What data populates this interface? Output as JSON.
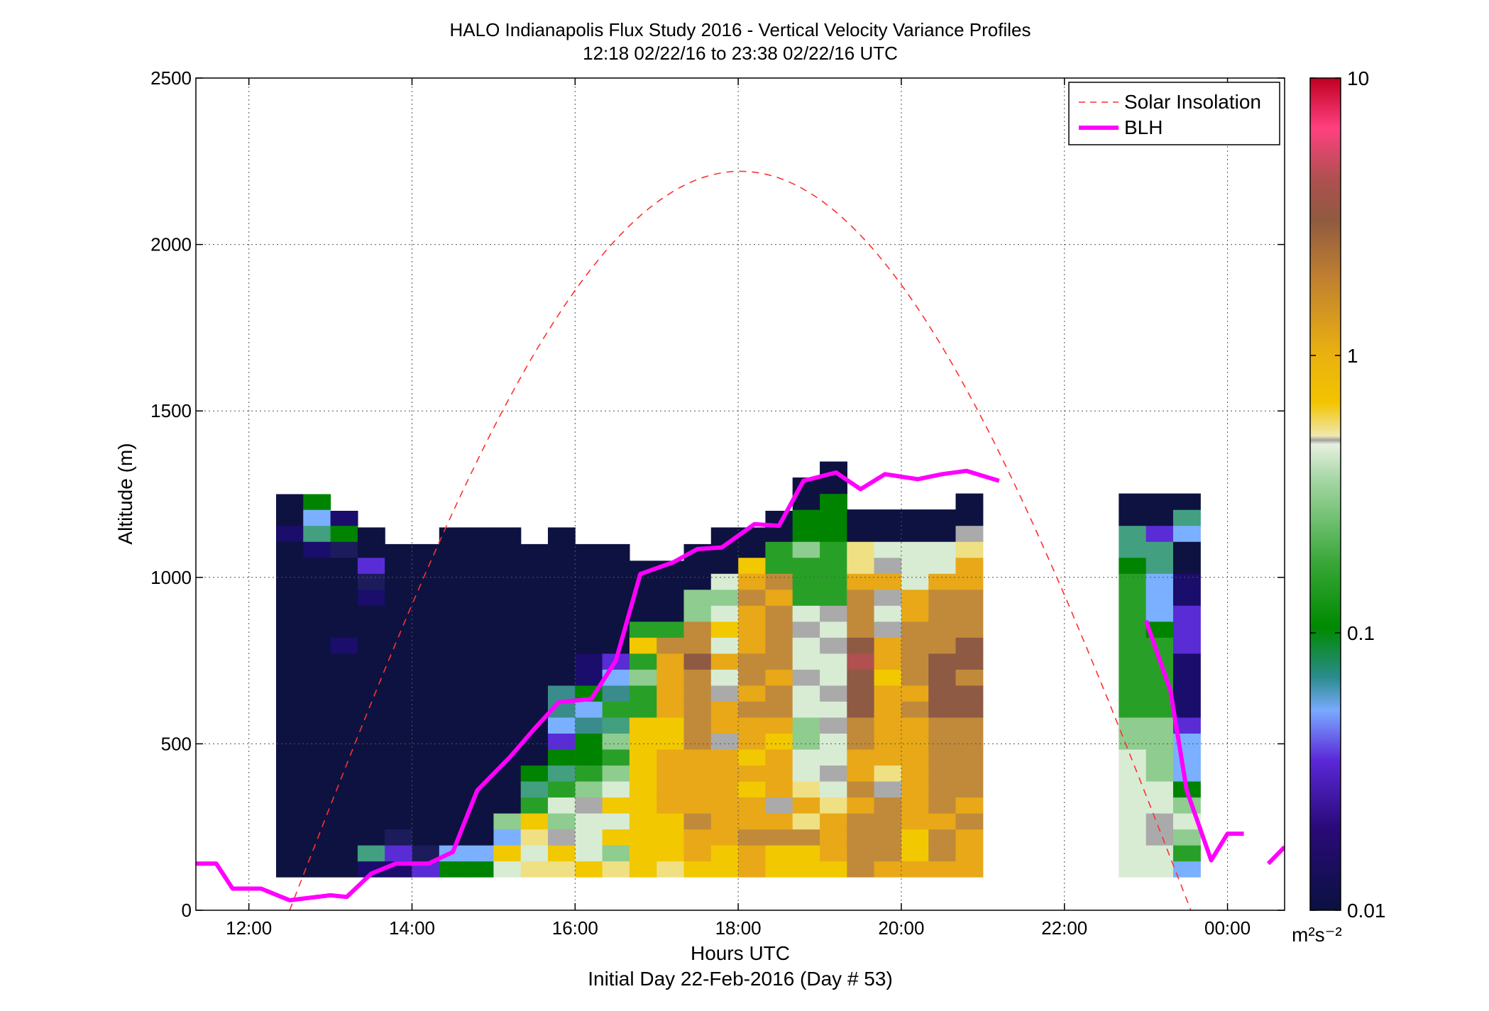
{
  "chart_data": {
    "type": "heatmap",
    "title": "HALO Indianapolis Flux Study 2016 - Vertical Velocity Variance Profiles",
    "subtitle": "12:18 02/22/16 to 23:38 02/22/16  UTC",
    "xlabel": "Hours UTC",
    "xlabel2": "Initial Day 22-Feb-2016 (Day # 53)",
    "ylabel": "Altitude (m)",
    "xlim": [
      11.35,
      24.7
    ],
    "ylim": [
      0,
      2500
    ],
    "x_ticks": [
      12,
      14,
      16,
      18,
      20,
      22,
      24
    ],
    "x_tick_labels": [
      "12:00",
      "14:00",
      "16:00",
      "18:00",
      "20:00",
      "22:00",
      "00:00"
    ],
    "y_ticks": [
      0,
      500,
      1000,
      1500,
      2000,
      2500
    ],
    "y_tick_labels": [
      "0",
      "500",
      "1000",
      "1500",
      "2000",
      "2500"
    ],
    "grid": true,
    "legend_position": "top-right",
    "legend": [
      {
        "label": "Solar Insolation",
        "color": "#ff3030",
        "style": "dashed"
      },
      {
        "label": "BLH",
        "color": "#ff00ff",
        "style": "solid"
      }
    ],
    "colorbar": {
      "scale": "log",
      "range": [
        0.01,
        10
      ],
      "tick_values": [
        0.01,
        0.1,
        1,
        10
      ],
      "tick_labels": [
        "0.01",
        "0.1",
        "1",
        "10"
      ],
      "unit_label": "m²s⁻²",
      "colors": [
        "#0a1140",
        "#2a0a7a",
        "#5a28d8",
        "#7aaaff",
        "#2a8c8c",
        "#008a00",
        "#3aa83a",
        "#a8d8a8",
        "#e8f0e0",
        "#c0c0c0",
        "#f0e070",
        "#f2c400",
        "#eab010",
        "#c08030",
        "#905a40",
        "#b05050",
        "#ff4080",
        "#c00020"
      ]
    },
    "heatmap": {
      "x_start": 12.333,
      "dx": 0.3333,
      "y_start": 100,
      "dy": 48,
      "palette": [
        "#0d1240",
        "#1a0d6b",
        "#5a2cd6",
        "#7ab0ff",
        "#3a8c8c",
        "#008400",
        "#28a028",
        "#8fcc8f",
        "#d8ecd4",
        "#aaaaaa",
        "#f0e084",
        "#f2c800",
        "#e8a818",
        "#c08a3a",
        "#8e5a44",
        "#b05050",
        "#1c1c5c",
        "#42a080"
      ],
      "profiles": [
        {
          "x": 12.5,
          "top": 1250,
          "cells": [
            0,
            0,
            0,
            0,
            0,
            0,
            0,
            0,
            0,
            0,
            0,
            0,
            0,
            0,
            0,
            0,
            0,
            0,
            0,
            0,
            0,
            1,
            0,
            0
          ]
        },
        {
          "x": 12.833,
          "top": 1250,
          "cells": [
            0,
            0,
            0,
            0,
            0,
            0,
            0,
            0,
            0,
            0,
            0,
            0,
            0,
            0,
            0,
            0,
            0,
            0,
            0,
            0,
            1,
            17,
            3,
            5
          ]
        },
        {
          "x": 13.167,
          "top": 1200,
          "cells": [
            0,
            0,
            0,
            0,
            0,
            0,
            0,
            0,
            0,
            0,
            0,
            0,
            0,
            0,
            1,
            0,
            0,
            0,
            0,
            0,
            16,
            5,
            1
          ]
        },
        {
          "x": 13.5,
          "top": 1150,
          "cells": [
            1,
            17,
            0,
            0,
            0,
            0,
            0,
            0,
            0,
            0,
            0,
            0,
            0,
            0,
            0,
            0,
            0,
            1,
            16,
            2,
            0,
            0
          ]
        },
        {
          "x": 13.833,
          "top": 1100,
          "cells": [
            1,
            2,
            16,
            0,
            0,
            0,
            0,
            0,
            0,
            0,
            0,
            0,
            0,
            0,
            0,
            0,
            0,
            0,
            0,
            0,
            0
          ]
        },
        {
          "x": 14.167,
          "top": 1100,
          "cells": [
            2,
            16,
            0,
            0,
            0,
            0,
            0,
            0,
            0,
            0,
            0,
            0,
            0,
            0,
            0,
            0,
            0,
            0,
            0,
            0,
            0
          ]
        },
        {
          "x": 14.5,
          "top": 1150,
          "cells": [
            5,
            3,
            0,
            0,
            0,
            0,
            0,
            0,
            0,
            0,
            0,
            0,
            0,
            0,
            0,
            0,
            0,
            0,
            0,
            0,
            0,
            0
          ]
        },
        {
          "x": 14.833,
          "top": 1150,
          "cells": [
            5,
            3,
            0,
            0,
            0,
            0,
            0,
            0,
            0,
            0,
            0,
            0,
            0,
            0,
            0,
            0,
            0,
            0,
            0,
            0,
            0,
            0
          ]
        },
        {
          "x": 15.167,
          "top": 1150,
          "cells": [
            8,
            11,
            3,
            7,
            0,
            0,
            0,
            0,
            0,
            0,
            0,
            0,
            0,
            0,
            0,
            0,
            0,
            0,
            0,
            0,
            0,
            0
          ]
        },
        {
          "x": 15.5,
          "top": 1100,
          "cells": [
            10,
            8,
            10,
            11,
            6,
            17,
            5,
            0,
            0,
            0,
            0,
            0,
            0,
            0,
            0,
            0,
            0,
            0,
            0,
            0,
            0
          ]
        },
        {
          "x": 15.833,
          "top": 1150,
          "cells": [
            10,
            11,
            9,
            7,
            8,
            6,
            17,
            5,
            2,
            3,
            4,
            4,
            0,
            0,
            0,
            0,
            0,
            0,
            0,
            0,
            0,
            0
          ]
        },
        {
          "x": 16.167,
          "top": 1100,
          "cells": [
            11,
            8,
            8,
            8,
            9,
            7,
            6,
            5,
            5,
            4,
            3,
            5,
            1,
            1,
            0,
            0,
            0,
            0,
            0,
            0,
            0
          ]
        },
        {
          "x": 16.5,
          "top": 1100,
          "cells": [
            10,
            7,
            11,
            8,
            11,
            8,
            7,
            6,
            7,
            17,
            6,
            4,
            3,
            2,
            0,
            0,
            0,
            0,
            0,
            0,
            0
          ]
        },
        {
          "x": 16.833,
          "top": 1050,
          "cells": [
            11,
            11,
            11,
            11,
            11,
            11,
            11,
            11,
            11,
            11,
            6,
            6,
            7,
            6,
            11,
            6,
            0,
            0,
            0,
            0
          ]
        },
        {
          "x": 17.167,
          "top": 1050,
          "cells": [
            10,
            11,
            11,
            11,
            12,
            12,
            12,
            12,
            11,
            11,
            12,
            12,
            12,
            12,
            13,
            6,
            0,
            0,
            0,
            0
          ]
        },
        {
          "x": 17.5,
          "top": 1100,
          "cells": [
            11,
            12,
            12,
            13,
            12,
            12,
            12,
            12,
            13,
            13,
            13,
            13,
            13,
            14,
            13,
            13,
            7,
            7,
            0,
            0,
            0
          ]
        },
        {
          "x": 17.833,
          "top": 1150,
          "cells": [
            11,
            11,
            12,
            12,
            12,
            12,
            12,
            12,
            9,
            12,
            12,
            9,
            8,
            12,
            8,
            11,
            8,
            7,
            8,
            0,
            0,
            0
          ]
        },
        {
          "x": 18.167,
          "top": 1150,
          "cells": [
            12,
            12,
            13,
            12,
            12,
            11,
            12,
            11,
            12,
            12,
            13,
            12,
            13,
            13,
            12,
            12,
            12,
            13,
            12,
            11,
            0,
            0
          ]
        },
        {
          "x": 18.5,
          "top": 1200,
          "cells": [
            11,
            11,
            13,
            12,
            9,
            12,
            12,
            12,
            11,
            12,
            13,
            13,
            12,
            13,
            13,
            13,
            13,
            12,
            13,
            6,
            6,
            0,
            0
          ]
        },
        {
          "x": 18.833,
          "top": 1300,
          "cells": [
            11,
            11,
            13,
            10,
            12,
            10,
            8,
            8,
            7,
            7,
            8,
            8,
            9,
            8,
            8,
            9,
            8,
            6,
            6,
            6,
            7,
            5,
            5,
            0,
            0
          ]
        },
        {
          "x": 19.167,
          "top": 1350,
          "cells": [
            11,
            12,
            12,
            12,
            10,
            8,
            9,
            8,
            8,
            9,
            8,
            9,
            8,
            8,
            9,
            8,
            9,
            6,
            6,
            6,
            6,
            5,
            5,
            5,
            0,
            0
          ]
        },
        {
          "x": 19.5,
          "top": 1300,
          "cells": [
            13,
            13,
            13,
            13,
            12,
            13,
            12,
            12,
            13,
            13,
            14,
            14,
            14,
            15,
            14,
            13,
            13,
            13,
            12,
            10,
            10,
            0,
            0
          ]
        },
        {
          "x": 19.833,
          "top": 1300,
          "cells": [
            12,
            13,
            13,
            13,
            13,
            9,
            10,
            12,
            12,
            12,
            12,
            12,
            11,
            12,
            12,
            9,
            8,
            9,
            12,
            9,
            8,
            0,
            0
          ]
        },
        {
          "x": 20.167,
          "top": 1300,
          "cells": [
            12,
            11,
            11,
            12,
            12,
            12,
            12,
            12,
            12,
            12,
            13,
            12,
            13,
            13,
            13,
            13,
            12,
            12,
            8,
            8,
            8,
            0,
            0
          ]
        },
        {
          "x": 20.5,
          "top": 1300,
          "cells": [
            12,
            13,
            13,
            12,
            13,
            13,
            13,
            13,
            13,
            13,
            14,
            14,
            14,
            14,
            13,
            13,
            13,
            13,
            12,
            8,
            8,
            0,
            0
          ]
        },
        {
          "x": 20.833,
          "top": 1350,
          "cells": [
            12,
            12,
            12,
            13,
            12,
            13,
            13,
            13,
            13,
            13,
            14,
            14,
            13,
            14,
            14,
            13,
            13,
            13,
            12,
            12,
            10,
            9,
            0,
            0
          ]
        },
        {
          "x": 22.833,
          "top": 1300,
          "cells": [
            8,
            8,
            8,
            8,
            8,
            8,
            8,
            8,
            7,
            7,
            6,
            6,
            6,
            6,
            6,
            6,
            6,
            6,
            6,
            5,
            17,
            17,
            0,
            0
          ]
        },
        {
          "x": 23.167,
          "top": 1300,
          "cells": [
            8,
            8,
            9,
            9,
            8,
            8,
            7,
            7,
            7,
            7,
            6,
            6,
            6,
            6,
            6,
            5,
            3,
            3,
            3,
            17,
            17,
            2,
            0,
            0
          ]
        },
        {
          "x": 23.5,
          "top": 1300,
          "cells": [
            3,
            6,
            7,
            8,
            7,
            5,
            3,
            3,
            3,
            2,
            1,
            1,
            1,
            1,
            2,
            2,
            2,
            1,
            1,
            0,
            0,
            3,
            17,
            0
          ]
        }
      ]
    },
    "series": [
      {
        "name": "BLH",
        "x": [
          11.35,
          11.6,
          11.8,
          12.0,
          12.15,
          12.5,
          13.0,
          13.2,
          13.5,
          13.8,
          14.2,
          14.5,
          14.8,
          15.2,
          15.5,
          15.8,
          16.2,
          16.5,
          16.8,
          17.2,
          17.5,
          17.8,
          18.2,
          18.5,
          18.8,
          19.2,
          19.5,
          19.8,
          20.2,
          20.5,
          20.8,
          21.2
        ],
        "y": [
          140,
          140,
          65,
          65,
          65,
          30,
          45,
          40,
          110,
          140,
          140,
          175,
          360,
          460,
          545,
          625,
          635,
          750,
          1010,
          1045,
          1085,
          1090,
          1160,
          1155,
          1290,
          1315,
          1265,
          1310,
          1295,
          1310,
          1320,
          1290
        ]
      },
      {
        "name": "BLH",
        "x": [
          23.0,
          23.3,
          23.5,
          23.8,
          24.0,
          24.2
        ],
        "y": [
          870,
          660,
          360,
          150,
          230,
          230
        ]
      },
      {
        "name": "BLH",
        "x": [
          24.5,
          24.7
        ],
        "y": [
          140,
          190
        ]
      },
      {
        "name": "Solar Insolation",
        "x_start": 12.5,
        "x_end": 23.55,
        "peak_x": 18.0,
        "peak_y": 2220
      }
    ]
  }
}
